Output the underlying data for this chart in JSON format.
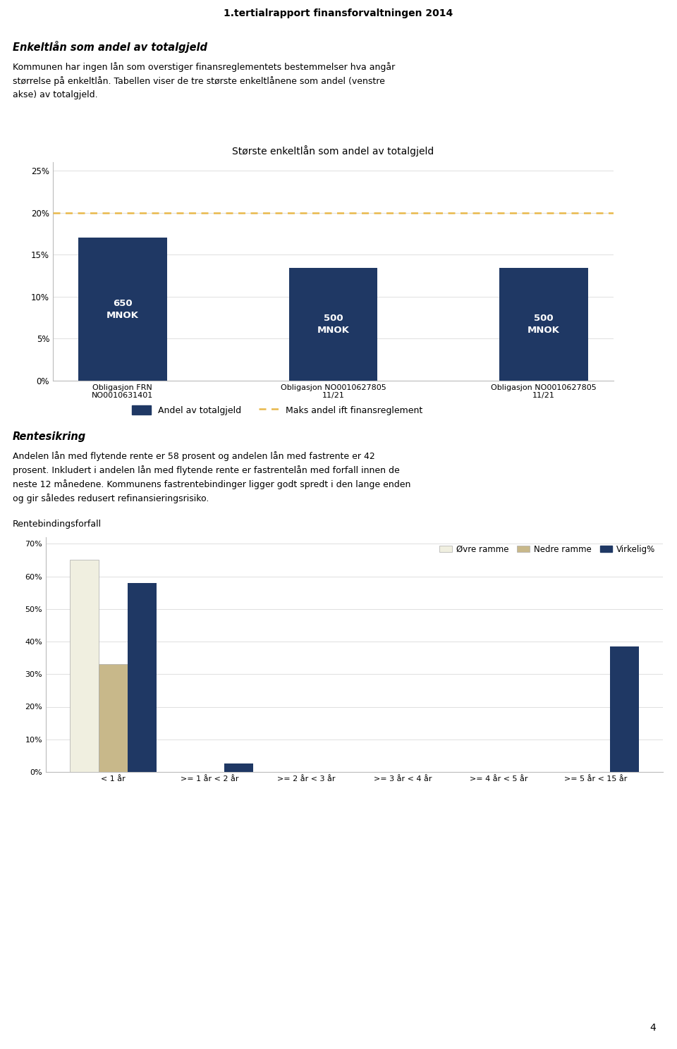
{
  "page_title": "1.tertialrapport finansforvaltningen 2014",
  "section1_title": "Enkeltlån som andel av totalgjeld",
  "section1_line1": "Kommunen har ingen lån som overstiger finansreglementets bestemmelser hva angår",
  "section1_line2": "størrelse på enkeltlån. Tabellen viser de tre største enkeltlånene som andel (venstre",
  "section1_line3": "akse) av totalgjeld.",
  "chart1_title": "Største enkeltlån som andel av totalgjeld",
  "chart1_categories": [
    "Obligasjon FRN\nNO0010631401",
    "Obligasjon NO0010627805\n11/21",
    "Obligasjon NO0010627805\n11/21"
  ],
  "chart1_values": [
    0.17,
    0.134,
    0.134
  ],
  "chart1_bar_labels": [
    "650\nMNOK",
    "500\nMNOK",
    "500\nMNOK"
  ],
  "chart1_bar_color": "#1F3864",
  "chart1_dashed_line": 0.2,
  "chart1_dashed_color": "#E8B84B",
  "chart1_ylim": [
    0,
    0.26
  ],
  "chart1_yticks": [
    0.0,
    0.05,
    0.1,
    0.15,
    0.2,
    0.25
  ],
  "chart1_ytick_labels": [
    "0%",
    "5%",
    "10%",
    "15%",
    "20%",
    "25%"
  ],
  "chart1_legend_bar_label": "Andel av totalgjeld",
  "chart1_legend_line_label": "Maks andel ift finansreglement",
  "section2_title": "Rentesikring",
  "section2_line1": "Andelen lån med flytende rente er 58 prosent og andelen lån med fastrente er 42",
  "section2_line2": "prosent. Inkludert i andelen lån med flytende rente er fastrentelån med forfall innen de",
  "section2_line3": "neste 12 månedene. Kommunens fastrentebindinger ligger godt spredt i den lange enden",
  "section2_line4": "og gir således redusert refinansieringsrisiko.",
  "section3_title": "Rentebindingsforfall",
  "chart2_categories": [
    "< 1 år",
    ">= 1 år < 2 år",
    ">= 2 år < 3 år",
    ">= 3 år < 4 år",
    ">= 4 år < 5 år",
    ">= 5 år < 15 år"
  ],
  "chart2_ovre": [
    0.65,
    0,
    0,
    0,
    0,
    0
  ],
  "chart2_nedre": [
    0.33,
    0,
    0,
    0,
    0,
    0
  ],
  "chart2_virkelig": [
    0.58,
    0.025,
    0,
    0,
    0,
    0.385
  ],
  "chart2_ovre_color": "#F0EFE0",
  "chart2_nedre_color": "#C8B88A",
  "chart2_virkelig_color": "#1F3864",
  "chart2_ylim": [
    0,
    0.72
  ],
  "chart2_yticks": [
    0.0,
    0.1,
    0.2,
    0.3,
    0.4,
    0.5,
    0.6,
    0.7
  ],
  "chart2_ytick_labels": [
    "0%",
    "10%",
    "20%",
    "30%",
    "40%",
    "50%",
    "60%",
    "70%"
  ],
  "chart2_legend_ovre": "Øvre ramme",
  "chart2_legend_nedre": "Nedre ramme",
  "chart2_legend_virkelig": "Virkelig%",
  "page_number": "4"
}
